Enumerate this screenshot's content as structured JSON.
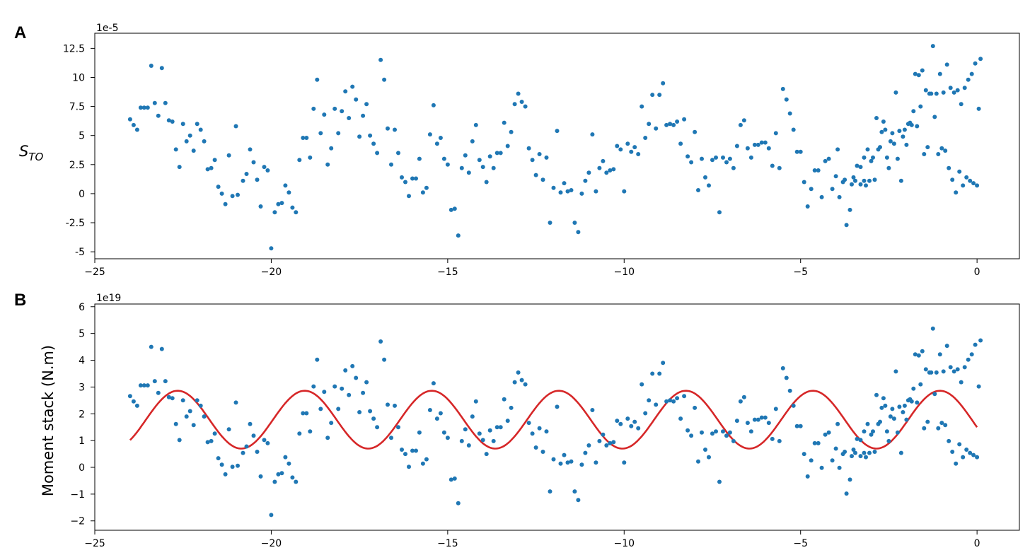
{
  "figure": {
    "colors": {
      "points": "#1f77b4",
      "fit": "#d62728",
      "axes": "#000000"
    }
  },
  "chart_data": [
    {
      "type": "scatter",
      "panel": "A",
      "ylabel_main": "S",
      "ylabel_sub": "TO",
      "offset_label": "1e-5",
      "xlim": [
        -25,
        1.2
      ],
      "ylim": [
        -5.6,
        13.8
      ],
      "xticks": [
        -25,
        -20,
        -15,
        -10,
        -5,
        0
      ],
      "xtick_labels": [
        "−25",
        "−20",
        "−15",
        "−10",
        "−5",
        "0"
      ],
      "yticks": [
        -5,
        -2.5,
        0,
        2.5,
        5,
        7.5,
        10,
        12.5
      ],
      "ytick_labels": [
        "-5",
        "-2.5",
        "0",
        "2.5",
        "5",
        "7.5",
        "10",
        "12.5"
      ],
      "points": [
        [
          -24.0,
          6.4
        ],
        [
          -23.9,
          5.9
        ],
        [
          -23.8,
          5.5
        ],
        [
          -23.7,
          7.4
        ],
        [
          -23.6,
          7.4
        ],
        [
          -23.5,
          7.4
        ],
        [
          -23.4,
          11.0
        ],
        [
          -23.3,
          7.8
        ],
        [
          -23.2,
          6.7
        ],
        [
          -23.1,
          10.8
        ],
        [
          -23.0,
          7.8
        ],
        [
          -22.9,
          6.3
        ],
        [
          -22.8,
          6.2
        ],
        [
          -22.7,
          3.8
        ],
        [
          -22.6,
          2.3
        ],
        [
          -22.5,
          6.0
        ],
        [
          -22.4,
          4.5
        ],
        [
          -22.3,
          5.0
        ],
        [
          -22.2,
          3.7
        ],
        [
          -22.1,
          6.0
        ],
        [
          -22.0,
          5.5
        ],
        [
          -21.9,
          4.5
        ],
        [
          -21.8,
          2.1
        ],
        [
          -21.7,
          2.2
        ],
        [
          -21.6,
          2.9
        ],
        [
          -21.5,
          0.6
        ],
        [
          -21.4,
          0.0
        ],
        [
          -21.3,
          -0.9
        ],
        [
          -21.2,
          3.3
        ],
        [
          -21.1,
          -0.2
        ],
        [
          -21.0,
          5.8
        ],
        [
          -20.95,
          -0.1
        ],
        [
          -20.8,
          1.1
        ],
        [
          -20.7,
          1.7
        ],
        [
          -20.6,
          3.8
        ],
        [
          -20.5,
          2.7
        ],
        [
          -20.4,
          1.2
        ],
        [
          -20.3,
          -1.1
        ],
        [
          -20.2,
          2.3
        ],
        [
          -20.1,
          2.0
        ],
        [
          -20.0,
          -4.7
        ],
        [
          -19.9,
          -1.6
        ],
        [
          -19.8,
          -0.9
        ],
        [
          -19.7,
          -0.8
        ],
        [
          -19.6,
          0.7
        ],
        [
          -19.5,
          0.1
        ],
        [
          -19.4,
          -1.2
        ],
        [
          -19.3,
          -1.6
        ],
        [
          -19.2,
          2.9
        ],
        [
          -19.1,
          4.8
        ],
        [
          -19.0,
          4.8
        ],
        [
          -18.9,
          3.1
        ],
        [
          -18.8,
          7.3
        ],
        [
          -18.7,
          9.8
        ],
        [
          -18.6,
          5.2
        ],
        [
          -18.5,
          6.8
        ],
        [
          -18.4,
          2.5
        ],
        [
          -18.3,
          3.9
        ],
        [
          -18.2,
          7.3
        ],
        [
          -18.1,
          5.2
        ],
        [
          -18.0,
          7.1
        ],
        [
          -17.9,
          8.8
        ],
        [
          -17.8,
          6.5
        ],
        [
          -17.7,
          9.2
        ],
        [
          -17.6,
          8.1
        ],
        [
          -17.5,
          4.9
        ],
        [
          -17.4,
          6.7
        ],
        [
          -17.3,
          7.7
        ],
        [
          -17.2,
          5.0
        ],
        [
          -17.1,
          4.3
        ],
        [
          -17.0,
          3.5
        ],
        [
          -16.9,
          11.5
        ],
        [
          -16.8,
          9.8
        ],
        [
          -16.7,
          5.6
        ],
        [
          -16.6,
          2.5
        ],
        [
          -16.5,
          5.5
        ],
        [
          -16.4,
          3.5
        ],
        [
          -16.3,
          1.4
        ],
        [
          -16.2,
          1.0
        ],
        [
          -16.1,
          -0.2
        ],
        [
          -16.0,
          1.3
        ],
        [
          -15.9,
          1.3
        ],
        [
          -15.8,
          3.0
        ],
        [
          -15.7,
          0.1
        ],
        [
          -15.6,
          0.5
        ],
        [
          -15.5,
          5.1
        ],
        [
          -15.4,
          7.6
        ],
        [
          -15.3,
          4.3
        ],
        [
          -15.2,
          4.8
        ],
        [
          -15.1,
          3.0
        ],
        [
          -15.0,
          2.5
        ],
        [
          -14.9,
          -1.4
        ],
        [
          -14.8,
          -1.3
        ],
        [
          -14.7,
          -3.6
        ],
        [
          -14.6,
          2.2
        ],
        [
          -14.5,
          3.3
        ],
        [
          -14.4,
          1.8
        ],
        [
          -14.3,
          4.5
        ],
        [
          -14.2,
          5.9
        ],
        [
          -14.1,
          2.9
        ],
        [
          -14.0,
          2.3
        ],
        [
          -13.9,
          1.0
        ],
        [
          -13.8,
          3.2
        ],
        [
          -13.7,
          2.2
        ],
        [
          -13.6,
          3.5
        ],
        [
          -13.5,
          3.5
        ],
        [
          -13.4,
          6.1
        ],
        [
          -13.3,
          4.1
        ],
        [
          -13.2,
          5.3
        ],
        [
          -13.1,
          7.7
        ],
        [
          -13.0,
          8.6
        ],
        [
          -12.9,
          7.9
        ],
        [
          -12.8,
          7.5
        ],
        [
          -12.7,
          3.9
        ],
        [
          -12.6,
          2.9
        ],
        [
          -12.5,
          1.6
        ],
        [
          -12.4,
          3.4
        ],
        [
          -12.3,
          1.2
        ],
        [
          -12.2,
          3.1
        ],
        [
          -12.1,
          -2.5
        ],
        [
          -12.0,
          0.5
        ],
        [
          -11.9,
          5.4
        ],
        [
          -11.8,
          0.1
        ],
        [
          -11.7,
          0.9
        ],
        [
          -11.6,
          0.2
        ],
        [
          -11.5,
          0.3
        ],
        [
          -11.4,
          -2.5
        ],
        [
          -11.3,
          -3.3
        ],
        [
          -11.2,
          0.0
        ],
        [
          -11.1,
          1.1
        ],
        [
          -11.0,
          1.8
        ],
        [
          -10.9,
          5.1
        ],
        [
          -10.8,
          0.2
        ],
        [
          -10.7,
          2.2
        ],
        [
          -10.6,
          2.8
        ],
        [
          -10.5,
          1.8
        ],
        [
          -10.4,
          2.0
        ],
        [
          -10.3,
          2.1
        ],
        [
          -10.2,
          4.1
        ],
        [
          -10.1,
          3.8
        ],
        [
          -10.0,
          0.2
        ],
        [
          -9.9,
          4.3
        ],
        [
          -9.8,
          3.6
        ],
        [
          -9.7,
          4.0
        ],
        [
          -9.6,
          3.4
        ],
        [
          -9.5,
          7.5
        ],
        [
          -9.4,
          4.8
        ],
        [
          -9.3,
          6.0
        ],
        [
          -9.2,
          8.5
        ],
        [
          -9.1,
          5.6
        ],
        [
          -9.0,
          8.5
        ],
        [
          -8.9,
          9.5
        ],
        [
          -8.8,
          5.9
        ],
        [
          -8.7,
          6.0
        ],
        [
          -8.6,
          5.9
        ],
        [
          -8.5,
          6.2
        ],
        [
          -8.4,
          4.3
        ],
        [
          -8.3,
          6.4
        ],
        [
          -8.2,
          3.2
        ],
        [
          -8.1,
          2.7
        ],
        [
          -8.0,
          5.3
        ],
        [
          -7.9,
          0.3
        ],
        [
          -7.8,
          3.0
        ],
        [
          -7.7,
          1.4
        ],
        [
          -7.6,
          0.7
        ],
        [
          -7.5,
          2.9
        ],
        [
          -7.4,
          3.1
        ],
        [
          -7.3,
          -1.6
        ],
        [
          -7.2,
          3.1
        ],
        [
          -7.1,
          2.7
        ],
        [
          -7.0,
          3.0
        ],
        [
          -6.9,
          2.2
        ],
        [
          -6.8,
          4.1
        ],
        [
          -6.7,
          5.9
        ],
        [
          -6.6,
          6.3
        ],
        [
          -6.5,
          3.9
        ],
        [
          -6.4,
          3.1
        ],
        [
          -6.3,
          4.2
        ],
        [
          -6.2,
          4.2
        ],
        [
          -6.1,
          4.4
        ],
        [
          -6.0,
          4.4
        ],
        [
          -5.9,
          3.9
        ],
        [
          -5.8,
          2.4
        ],
        [
          -5.7,
          5.2
        ],
        [
          -5.6,
          2.2
        ],
        [
          -5.5,
          9.0
        ],
        [
          -5.4,
          8.1
        ],
        [
          -5.3,
          6.9
        ],
        [
          -5.2,
          5.5
        ],
        [
          -5.1,
          3.6
        ],
        [
          -5.0,
          3.6
        ],
        [
          -4.9,
          1.0
        ],
        [
          -4.8,
          -1.1
        ],
        [
          -4.7,
          0.4
        ],
        [
          -4.6,
          2.0
        ],
        [
          -4.5,
          2.0
        ],
        [
          -4.4,
          -0.3
        ],
        [
          -4.3,
          2.8
        ],
        [
          -4.2,
          3.0
        ],
        [
          -4.1,
          0.4
        ],
        [
          -4.0,
          1.5
        ],
        [
          -3.9,
          -0.3
        ],
        [
          -3.8,
          1.0
        ],
        [
          -3.7,
          -2.7
        ],
        [
          -3.6,
          -1.4
        ],
        [
          -3.5,
          1.4
        ],
        [
          -3.4,
          2.4
        ],
        [
          -3.3,
          2.3
        ],
        [
          -3.2,
          3.1
        ],
        [
          -3.1,
          3.8
        ],
        [
          -3.0,
          2.8
        ],
        [
          -2.9,
          1.2
        ],
        [
          -2.8,
          3.8
        ],
        [
          -2.7,
          5.3
        ],
        [
          -2.6,
          5.5
        ],
        [
          -2.5,
          2.2
        ],
        [
          -2.4,
          5.2
        ],
        [
          -2.3,
          8.7
        ],
        [
          -2.2,
          5.4
        ],
        [
          -2.1,
          4.9
        ],
        [
          -2.0,
          4.2
        ],
        [
          -1.9,
          6.1
        ],
        [
          -1.8,
          7.1
        ],
        [
          -1.7,
          5.8
        ],
        [
          -1.6,
          7.5
        ],
        [
          -1.5,
          3.4
        ],
        [
          -1.4,
          4.0
        ],
        [
          -1.3,
          8.6
        ],
        [
          -1.2,
          6.6
        ],
        [
          -1.1,
          3.4
        ],
        [
          -1.0,
          3.9
        ],
        [
          -0.9,
          3.7
        ],
        [
          -0.8,
          2.2
        ],
        [
          -0.7,
          1.2
        ],
        [
          -0.6,
          0.1
        ],
        [
          -0.5,
          1.9
        ],
        [
          -0.4,
          0.7
        ],
        [
          -0.3,
          1.4
        ],
        [
          -0.2,
          1.1
        ],
        [
          -0.1,
          0.9
        ],
        [
          0.0,
          0.7
        ],
        [
          -3.95,
          3.8
        ],
        [
          -3.75,
          1.2
        ],
        [
          -3.55,
          0.8
        ],
        [
          -3.45,
          1.1
        ],
        [
          -3.3,
          0.8
        ],
        [
          -3.2,
          1.1
        ],
        [
          -3.15,
          0.7
        ],
        [
          -3.05,
          1.1
        ],
        [
          -2.95,
          3.1
        ],
        [
          -2.85,
          6.5
        ],
        [
          -2.75,
          4.0
        ],
        [
          -2.65,
          6.2
        ],
        [
          -2.55,
          3.1
        ],
        [
          -2.45,
          4.5
        ],
        [
          -2.35,
          4.3
        ],
        [
          -2.25,
          3.0
        ],
        [
          -2.15,
          1.1
        ],
        [
          -2.05,
          5.5
        ],
        [
          -1.95,
          6.0
        ],
        [
          -1.85,
          5.9
        ],
        [
          -1.75,
          10.3
        ],
        [
          -1.65,
          10.2
        ],
        [
          -1.55,
          10.6
        ],
        [
          -1.45,
          8.9
        ],
        [
          -1.35,
          8.6
        ],
        [
          -1.25,
          12.7
        ],
        [
          -1.15,
          8.6
        ],
        [
          -1.05,
          10.3
        ],
        [
          -0.95,
          8.7
        ],
        [
          -0.85,
          11.1
        ],
        [
          -0.75,
          9.1
        ],
        [
          -0.65,
          8.7
        ],
        [
          -0.55,
          8.9
        ],
        [
          -0.45,
          7.7
        ],
        [
          -0.35,
          9.1
        ],
        [
          -0.25,
          9.8
        ],
        [
          -0.15,
          10.3
        ],
        [
          -0.05,
          11.2
        ],
        [
          0.05,
          7.3
        ],
        [
          0.1,
          11.6
        ]
      ]
    },
    {
      "type": "scatter",
      "panel": "B",
      "ylabel": "Moment stack (N.m)",
      "offset_label": "1e19",
      "xlim": [
        -25,
        1.2
      ],
      "ylim": [
        -2.35,
        6.1
      ],
      "xticks": [
        -25,
        -20,
        -15,
        -10,
        -5,
        0
      ],
      "xtick_labels": [
        "−25",
        "−20",
        "−15",
        "−10",
        "−5",
        "0"
      ],
      "yticks": [
        -2,
        -1,
        0,
        1,
        2,
        3,
        4,
        5,
        6
      ],
      "ytick_labels": [
        "−2",
        "−1",
        "0",
        "1",
        "2",
        "3",
        "4",
        "5",
        "6"
      ],
      "fit": {
        "type": "sinusoid",
        "mean": 1.78,
        "amplitude": 1.08,
        "period": 3.6,
        "peak_x": -1.05,
        "x_range": [
          -24.0,
          0.0
        ]
      }
    }
  ]
}
